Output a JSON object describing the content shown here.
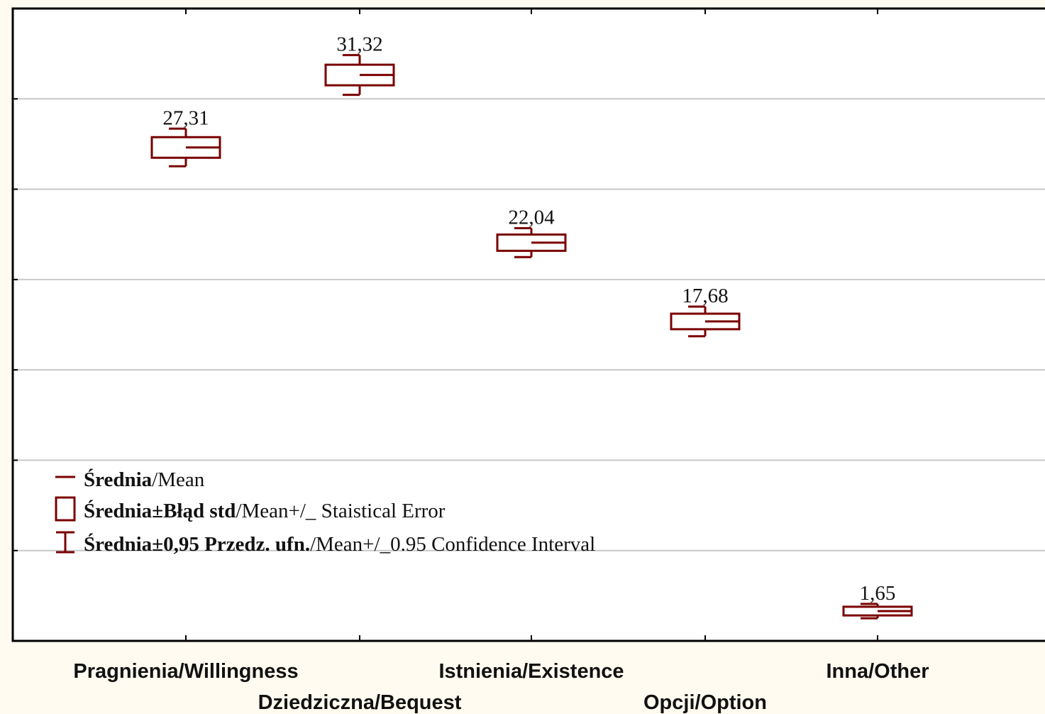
{
  "chart_data": {
    "type": "box",
    "categories": [
      "Pragnienia/Willingness",
      "Dziedziczna/Bequest",
      "Istnienia/Existence",
      "Opcji/Option",
      "Inna/Other"
    ],
    "values": [
      27.31,
      31.32,
      22.04,
      17.68,
      1.65
    ],
    "value_labels": [
      "27,31",
      "31,32",
      "22,04",
      "17,68",
      "1,65"
    ],
    "std_error": [
      0.57,
      0.57,
      0.45,
      0.43,
      0.24
    ],
    "confidence_interval": [
      1.04,
      1.1,
      0.8,
      0.82,
      0.4
    ],
    "color": "#7a0000",
    "ylim": [
      0,
      35
    ],
    "yticks": [
      5,
      10,
      15,
      20,
      25,
      30
    ],
    "grid": true,
    "legend": [
      {
        "bold": "Średnia",
        "text": "/Mean"
      },
      {
        "bold": "Średnia±Błąd std",
        "text": "/Mean+/_ Staistical Error"
      },
      {
        "bold": "Średnia±0,95 Przedz. ufn.",
        "text": "/Mean+/_0.95 Confidence Interval"
      }
    ]
  }
}
